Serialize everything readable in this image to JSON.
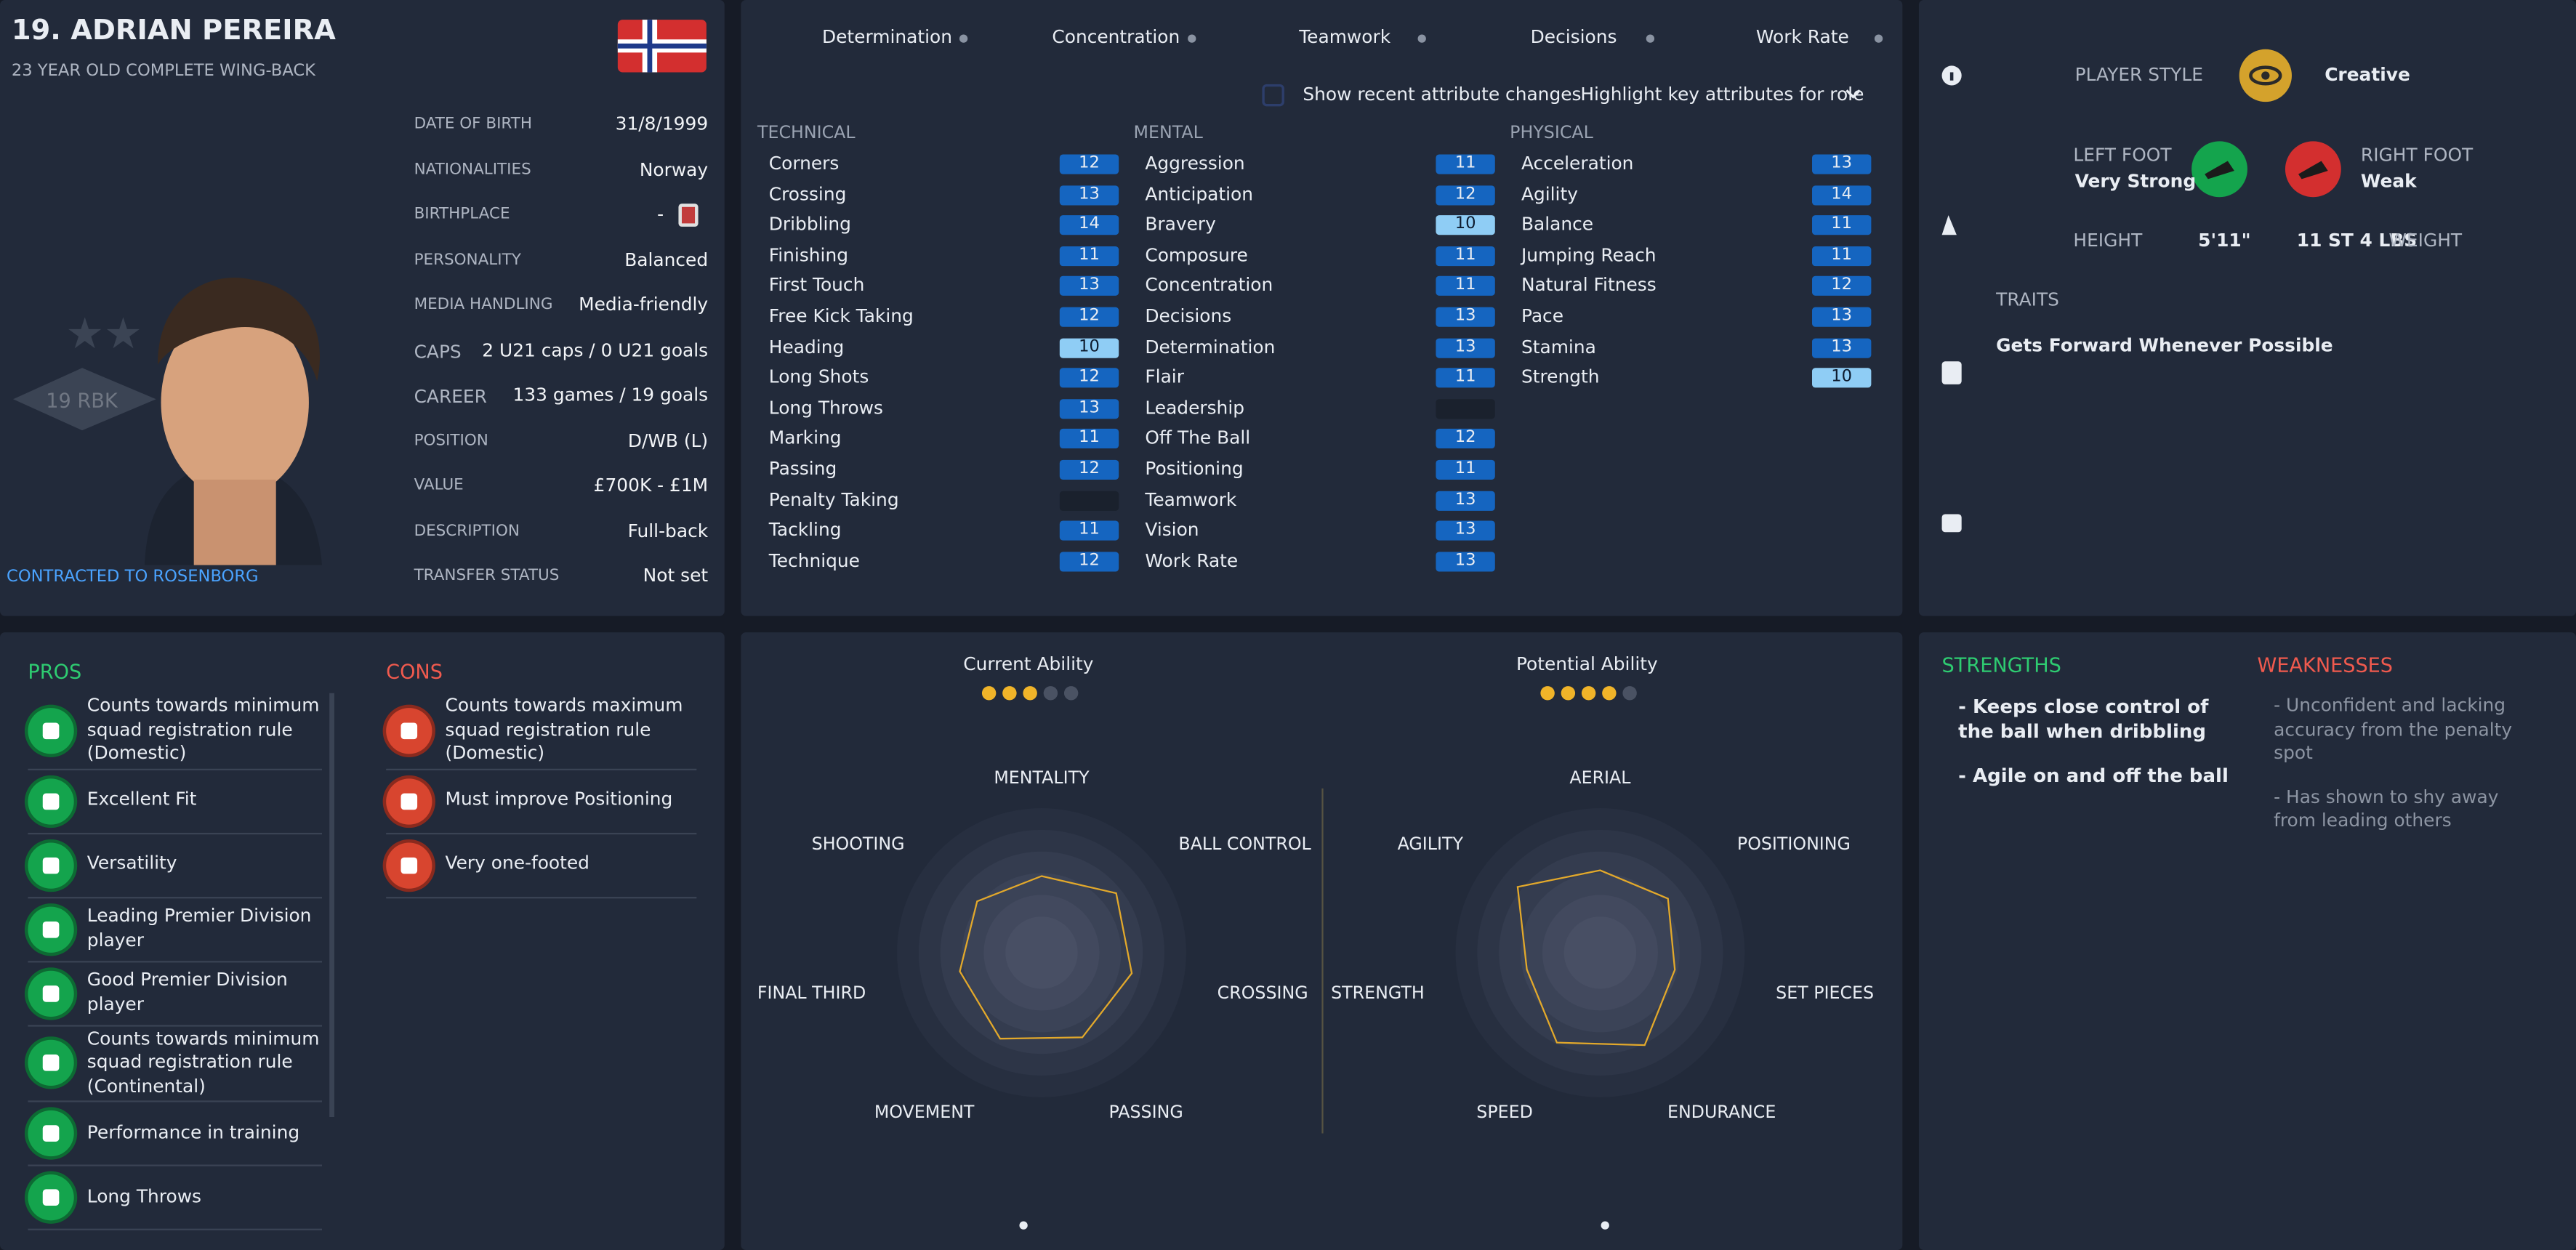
{
  "header": {
    "name": "19. ADRIAN PEREIRA",
    "subtitle": "23 YEAR OLD COMPLETE WING-BACK",
    "contract": "CONTRACTED TO ROSENBORG"
  },
  "details": {
    "rows": [
      [
        "DATE OF BIRTH",
        "31/8/1999"
      ],
      [
        "NATIONALITIES",
        "Norway"
      ],
      [
        "BIRTHPLACE",
        "-"
      ],
      [
        "PERSONALITY",
        "Balanced"
      ],
      [
        "MEDIA HANDLING",
        "Media-friendly"
      ],
      [
        "CAPS",
        "2 U21 caps / 0 U21 goals"
      ],
      [
        "CAREER",
        "133 games / 19 goals"
      ],
      [
        "POSITION",
        "D/WB (L)"
      ],
      [
        "VALUE",
        "£700K - £1M"
      ],
      [
        "DESCRIPTION",
        "Full-back"
      ],
      [
        "TRANSFER STATUS",
        "Not set"
      ]
    ]
  },
  "filters": {
    "items": [
      "Determination",
      "Concentration",
      "Teamwork",
      "Decisions",
      "Work Rate"
    ],
    "show_changes": "Show recent attribute changes",
    "highlight": "Highlight key attributes for role"
  },
  "attributes": [
    {
      "title": "TECHNICAL",
      "names": [
        "Corners",
        "Crossing",
        "Dribbling",
        "Finishing",
        "First Touch",
        "Free Kick Taking",
        "Heading",
        "Long Shots",
        "Long Throws",
        "Marking",
        "Passing",
        "Penalty Taking",
        "Tackling",
        "Technique"
      ],
      "values": [
        12,
        13,
        14,
        11,
        13,
        12,
        10,
        12,
        13,
        11,
        12,
        null,
        11,
        12
      ],
      "colors": [
        "#1565c0",
        "#1565c0",
        "#1565c0",
        "#1565c0",
        "#1565c0",
        "#1565c0",
        "#8fcdf5",
        "#1565c0",
        "#1565c0",
        "#1565c0",
        "#1565c0",
        "#1a212d",
        "#1565c0",
        "#1565c0"
      ]
    },
    {
      "title": "MENTAL",
      "names": [
        "Aggression",
        "Anticipation",
        "Bravery",
        "Composure",
        "Concentration",
        "Decisions",
        "Determination",
        "Flair",
        "Leadership",
        "Off The Ball",
        "Positioning",
        "Teamwork",
        "Vision",
        "Work Rate"
      ],
      "values": [
        11,
        12,
        10,
        11,
        11,
        13,
        13,
        11,
        null,
        12,
        11,
        13,
        13,
        13
      ],
      "colors": [
        "#1565c0",
        "#1565c0",
        "#8fcdf5",
        "#1565c0",
        "#1565c0",
        "#1565c0",
        "#1565c0",
        "#1565c0",
        "#1a212d",
        "#1565c0",
        "#1565c0",
        "#1565c0",
        "#1565c0",
        "#1565c0"
      ]
    },
    {
      "title": "PHYSICAL",
      "names": [
        "Acceleration",
        "Agility",
        "Balance",
        "Jumping Reach",
        "Natural Fitness",
        "Pace",
        "Stamina",
        "Strength"
      ],
      "values": [
        13,
        14,
        11,
        11,
        12,
        13,
        13,
        10
      ],
      "colors": [
        "#1565c0",
        "#1565c0",
        "#1565c0",
        "#1565c0",
        "#1565c0",
        "#1565c0",
        "#1565c0",
        "#8fcdf5"
      ]
    }
  ],
  "profile": {
    "style_label": "PLAYER STYLE",
    "style": "Creative",
    "left_foot_label": "LEFT FOOT",
    "left_foot": "Very Strong",
    "right_foot_label": "RIGHT FOOT",
    "right_foot": "Weak",
    "height_label": "HEIGHT",
    "height": "5'11\"",
    "weight": "11 ST 4 LBS",
    "weight_label": "WEIGHT",
    "traits_title": "TRAITS",
    "traits": [
      "Gets Forward Whenever Possible"
    ]
  },
  "pros": {
    "title": "PROS",
    "items": [
      "Counts towards minimum squad registration rule (Domestic)",
      "Excellent Fit",
      "Versatility",
      "Leading Premier Division player",
      "Good Premier Division player",
      "Counts towards minimum squad registration rule (Continental)",
      "Performance in training",
      "Long Throws"
    ]
  },
  "cons": {
    "title": "CONS",
    "items": [
      "Counts towards maximum squad registration rule (Domestic)",
      "Must improve Positioning",
      "Very one-footed"
    ]
  },
  "abilities": [
    {
      "title": "Current Ability",
      "stars": 3,
      "stars_max": 5,
      "rlim": [
        0,
        100
      ],
      "axes": [
        "MENTALITY",
        "BALL CONTROL",
        "CROSSING",
        "PASSING",
        "MOVEMENT",
        "FINAL THIRD",
        "SHOOTING"
      ],
      "values": [
        53,
        66,
        64,
        65,
        66,
        58,
        57
      ]
    },
    {
      "title": "Potential Ability",
      "stars": 4,
      "stars_max": 5,
      "rlim": [
        0,
        100
      ],
      "axes": [
        "AERIAL",
        "POSITIONING",
        "SET PIECES",
        "ENDURANCE",
        "SPEED",
        "STRENGTH",
        "AGILITY"
      ],
      "values": [
        57,
        60,
        53,
        71,
        69,
        52,
        73
      ]
    }
  ],
  "report": {
    "strengths_title": "STRENGTHS",
    "strengths": [
      "- Keeps close control of the ball when dribbling",
      "- Agile on and off the ball"
    ],
    "weaknesses_title": "WEAKNESSES",
    "weaknesses": [
      "- Unconfident and lacking accuracy from the penalty spot",
      "- Has shown to shy away from leading others"
    ]
  }
}
